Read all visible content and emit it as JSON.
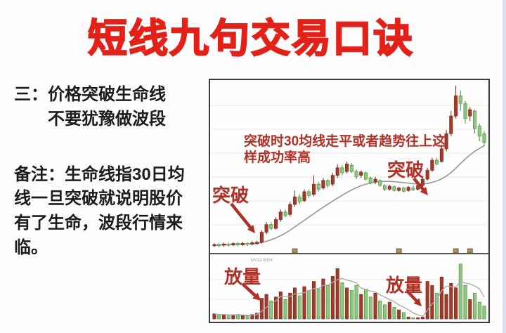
{
  "page": {
    "accent_red": "#e32119",
    "annotation_red": "#b23127",
    "edge_strip_color": "#d9e2f1"
  },
  "title": "短线九句交易口诀",
  "left_panel": {
    "heading_line1": "三：价格突破生命线",
    "heading_line2": "不要犹豫做波段",
    "note_line1": "备注：生命线指30日均",
    "note_line2": "线一旦突破就说明股价",
    "note_line3": "有了生命，波段行情来",
    "note_line4": "临。"
  },
  "chart_annotations": {
    "tip_line1": "突破时30均线走平或者趋势往上这",
    "tip_line2": "样成功率高",
    "breakout1": "突破",
    "breakout2": "突破",
    "volume1": "放量",
    "volume2": "放量",
    "tiny_label": "MV12 6024"
  },
  "chart_data": {
    "type": "candlestick+volume",
    "title": "",
    "legend": [],
    "grid": true,
    "price_range": [
      10,
      74
    ],
    "panes": [
      "price with 30-day MA",
      "volume with MA"
    ],
    "colors": {
      "up_fill": "#a03a29",
      "up_stroke": "#7c2b1e",
      "down_fill": "#8cc87d",
      "down_stroke": "#569043",
      "ma_line": "#9b9b9b",
      "grid_line": "#efecec",
      "divider": "#565656",
      "marker_fill": "#ab8d55",
      "marker_stroke": "#6b5632"
    },
    "candles": [
      [
        10.6,
        11.1,
        10.1,
        11.6
      ],
      [
        11.1,
        10.6,
        10.0,
        11.7
      ],
      [
        10.8,
        11.3,
        10.3,
        11.9
      ],
      [
        11.3,
        10.8,
        10.2,
        11.8
      ],
      [
        10.9,
        11.5,
        10.5,
        12.0
      ],
      [
        11.5,
        11.0,
        10.4,
        12.0
      ],
      [
        11.0,
        11.6,
        10.6,
        12.2
      ],
      [
        11.6,
        11.2,
        10.5,
        12.0
      ],
      [
        11.2,
        11.8,
        10.8,
        12.4
      ],
      [
        11.4,
        12.0,
        11.0,
        12.6
      ],
      [
        12.0,
        16.0,
        11.5,
        16.8
      ],
      [
        16.0,
        19.0,
        15.2,
        20.0
      ],
      [
        19.0,
        17.5,
        16.8,
        20.0
      ],
      [
        17.5,
        21.0,
        17.0,
        22.0
      ],
      [
        21.0,
        24.0,
        20.2,
        25.0
      ],
      [
        24.0,
        22.5,
        21.8,
        25.0
      ],
      [
        23.0,
        27.0,
        22.2,
        28.0
      ],
      [
        27.0,
        30.0,
        26.0,
        32.5
      ],
      [
        30.0,
        28.0,
        27.0,
        31.0
      ],
      [
        28.5,
        32.0,
        27.8,
        33.0
      ],
      [
        32.0,
        30.5,
        29.5,
        33.0
      ],
      [
        31.0,
        35.0,
        30.2,
        38.5
      ],
      [
        35.0,
        33.0,
        32.0,
        36.0
      ],
      [
        33.5,
        36.5,
        32.8,
        37.5
      ],
      [
        36.5,
        34.5,
        33.5,
        37.0
      ],
      [
        35.0,
        38.5,
        34.2,
        39.5
      ],
      [
        38.5,
        41.5,
        37.5,
        42.8
      ],
      [
        41.5,
        39.5,
        38.5,
        42.5
      ],
      [
        40.0,
        43.0,
        39.2,
        44.0
      ],
      [
        42.5,
        40.0,
        39.5,
        43.5
      ],
      [
        40.0,
        38.0,
        37.0,
        40.8
      ],
      [
        38.5,
        39.8,
        37.5,
        40.5
      ],
      [
        39.5,
        37.0,
        36.5,
        40.0
      ],
      [
        37.5,
        35.5,
        35.0,
        38.0
      ],
      [
        36.0,
        37.0,
        35.0,
        37.8
      ],
      [
        36.5,
        34.5,
        34.0,
        37.0
      ],
      [
        34.5,
        33.0,
        32.2,
        35.0
      ],
      [
        33.0,
        34.2,
        32.5,
        34.8
      ],
      [
        34.0,
        32.5,
        32.0,
        34.5
      ],
      [
        32.5,
        33.5,
        32.0,
        34.0
      ],
      [
        33.5,
        32.2,
        31.8,
        34.0
      ],
      [
        32.5,
        33.8,
        32.0,
        34.3
      ],
      [
        33.5,
        32.8,
        32.2,
        34.5
      ],
      [
        33.0,
        34.5,
        32.5,
        35.0
      ],
      [
        34.5,
        37.0,
        34.0,
        37.6
      ],
      [
        37.0,
        40.5,
        36.5,
        41.5
      ],
      [
        40.5,
        44.5,
        40.0,
        45.5
      ],
      [
        44.5,
        43.0,
        42.5,
        45.5
      ],
      [
        44.0,
        49.0,
        43.5,
        50.5
      ],
      [
        49.0,
        55.0,
        48.0,
        56.5
      ],
      [
        55.0,
        62.0,
        54.0,
        64.0
      ],
      [
        62.0,
        70.0,
        61.0,
        74.0
      ],
      [
        70.0,
        67.0,
        64.0,
        72.0
      ],
      [
        67.0,
        61.0,
        59.0,
        68.0
      ],
      [
        62.0,
        64.5,
        60.0,
        65.5
      ],
      [
        64.0,
        57.0,
        55.0,
        64.5
      ],
      [
        58.0,
        54.0,
        52.0,
        59.0
      ],
      [
        55.0,
        51.5,
        50.0,
        56.0
      ]
    ],
    "ma30": [
      10.9,
      10.95,
      11.0,
      11.05,
      11.1,
      11.15,
      11.25,
      11.35,
      11.45,
      11.55,
      11.9,
      12.4,
      13.0,
      13.7,
      14.6,
      15.6,
      16.8,
      18.1,
      19.4,
      20.7,
      22.0,
      23.3,
      24.6,
      25.9,
      27.1,
      28.3,
      29.5,
      30.6,
      31.7,
      32.7,
      33.6,
      34.4,
      35.0,
      35.5,
      35.8,
      36.0,
      36.1,
      36.1,
      36.0,
      35.8,
      35.6,
      35.4,
      35.2,
      35.1,
      35.1,
      35.3,
      35.7,
      36.3,
      37.1,
      38.2,
      39.6,
      41.3,
      43.2,
      45.0,
      46.6,
      48.0,
      49.2,
      50.2
    ],
    "volumes": [
      8,
      6,
      7,
      5,
      6,
      7,
      6,
      5,
      7,
      9,
      32,
      38,
      28,
      34,
      42,
      30,
      40,
      48,
      36,
      50,
      44,
      58,
      46,
      62,
      52,
      66,
      78,
      56,
      48,
      44,
      52,
      38,
      46,
      34,
      40,
      28,
      22,
      26,
      18,
      14,
      10,
      3,
      2,
      2,
      3,
      58,
      52,
      40,
      65,
      38,
      55,
      48,
      85,
      52,
      30,
      40,
      26,
      20
    ],
    "divider_marker_indices": [
      17,
      39,
      51,
      54
    ]
  }
}
